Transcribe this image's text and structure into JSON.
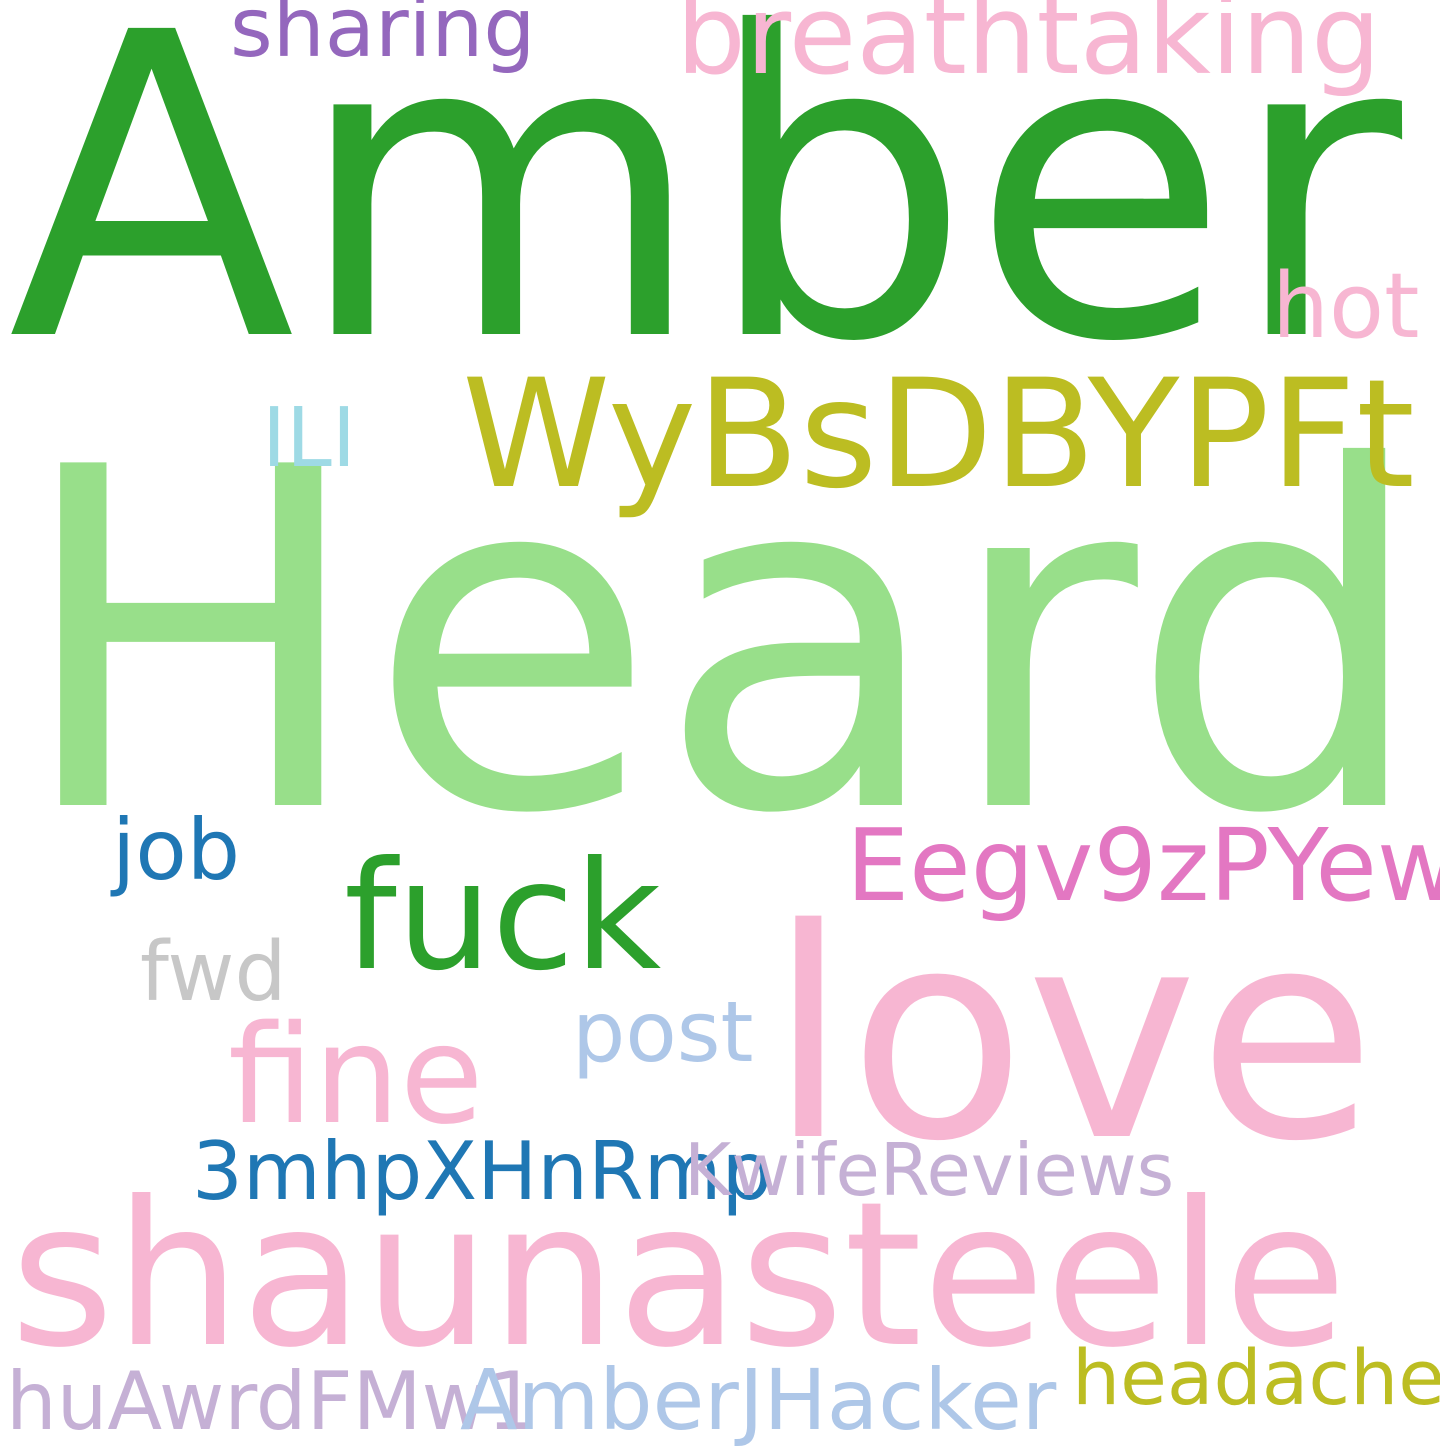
{
  "words": {
    "amber": {
      "text": "Amber",
      "color": "#2ca02c"
    },
    "heard": {
      "text": "Heard",
      "color": "#98df8a"
    },
    "love": {
      "text": "love",
      "color": "#f7b6d2"
    },
    "shaunasteele": {
      "text": "shaunasteele",
      "color": "#f7b6d2"
    },
    "wybsdbypft": {
      "text": "WyBsDBYPFt",
      "color": "#bcbd22"
    },
    "fuck": {
      "text": "fuck",
      "color": "#2ca02c"
    },
    "fine": {
      "text": "fine",
      "color": "#f7b6d2"
    },
    "eegv9zpyew": {
      "text": "Eegv9zPYew",
      "color": "#e377c2"
    },
    "breathtaking": {
      "text": "breathtaking",
      "color": "#f7b6d2"
    },
    "sharing": {
      "text": "sharing",
      "color": "#9467bd"
    },
    "hot": {
      "text": "hot",
      "color": "#f7b6d2"
    },
    "ili": {
      "text": "ILI",
      "color": "#9edae5"
    },
    "job": {
      "text": "job",
      "color": "#1f77b4"
    },
    "fwd": {
      "text": "fwd",
      "color": "#c7c7c7"
    },
    "post": {
      "text": "post",
      "color": "#aec7e8"
    },
    "mhp": {
      "text": "3mhpXHnRmp",
      "color": "#1f77b4"
    },
    "kwifereviews": {
      "text": "KwifeReviews",
      "color": "#c5b0d5"
    },
    "huawrdfmw1": {
      "text": "huAwrdFMw1",
      "color": "#c5b0d5"
    },
    "amberjhacker": {
      "text": "AmberJHacker",
      "color": "#aec7e8"
    },
    "headache": {
      "text": "headache",
      "color": "#bcbd22"
    }
  }
}
